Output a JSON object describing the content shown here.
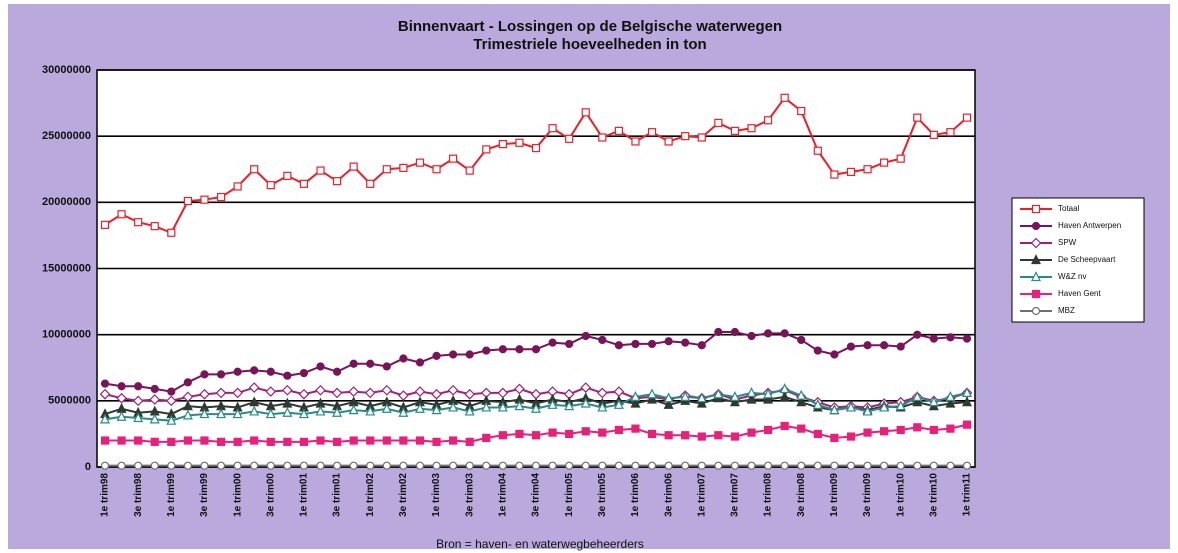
{
  "chart_data": {
    "type": "line",
    "title": "Binnenvaart - Lossingen op de Belgische waterwegen",
    "subtitle": "Trimestriele hoeveelheden in ton",
    "source": "Bron = haven- en waterwegbeheerders",
    "categories": [
      "1e trim98",
      null,
      "3e trim98",
      null,
      "1e trim99",
      null,
      "3e trim99",
      null,
      "1e trim00",
      null,
      "3e trim00",
      null,
      "1e trim01",
      null,
      "3e trim01",
      null,
      "1e trim02",
      null,
      "3e trim02",
      null,
      "1e trim03",
      null,
      "3e trim03",
      null,
      "1e trim04",
      null,
      "3e trim04",
      null,
      "1e trim05",
      null,
      "3e trim05",
      null,
      "1e trim06",
      null,
      "3e trim06",
      null,
      "1e trim07",
      null,
      "3e trim07",
      null,
      "1e trim08",
      null,
      "3e trim08",
      null,
      "1e trim09",
      null,
      "3e trim09",
      null,
      "1e trim10",
      null,
      "3e trim10",
      null,
      "1e trim11"
    ],
    "ylim": [
      0,
      30000000
    ],
    "yticks": [
      0,
      5000000,
      10000000,
      15000000,
      20000000,
      25000000,
      30000000
    ],
    "grid": true,
    "legend": "right",
    "series": [
      {
        "name": "Totaal",
        "color": "#e8202a",
        "marker": "square-open",
        "values": [
          18300000,
          19100000,
          18500000,
          18200000,
          17700000,
          20100000,
          20200000,
          20400000,
          21200000,
          22500000,
          21300000,
          22000000,
          21400000,
          22400000,
          21600000,
          22700000,
          21400000,
          22500000,
          22600000,
          23000000,
          22500000,
          23300000,
          22400000,
          24000000,
          24400000,
          24500000,
          24100000,
          25600000,
          24800000,
          26800000,
          24900000,
          25400000,
          24600000,
          25300000,
          24600000,
          25000000,
          24900000,
          26000000,
          25400000,
          25600000,
          26200000,
          27900000,
          26900000,
          23900000,
          22100000,
          22300000,
          22500000,
          23000000,
          23300000,
          26400000,
          25100000,
          25300000,
          26400000
        ]
      },
      {
        "name": "Haven Antwerpen",
        "color": "#7a1458",
        "marker": "circle-filled",
        "values": [
          6300000,
          6100000,
          6100000,
          5900000,
          5700000,
          6400000,
          7000000,
          7000000,
          7200000,
          7300000,
          7200000,
          6900000,
          7100000,
          7600000,
          7200000,
          7800000,
          7800000,
          7600000,
          8200000,
          7900000,
          8400000,
          8500000,
          8500000,
          8800000,
          8900000,
          8900000,
          8900000,
          9400000,
          9300000,
          9900000,
          9600000,
          9200000,
          9300000,
          9300000,
          9500000,
          9400000,
          9200000,
          10200000,
          10200000,
          9900000,
          10100000,
          10100000,
          9600000,
          8800000,
          8500000,
          9100000,
          9200000,
          9200000,
          9100000,
          10000000,
          9700000,
          9800000,
          9700000
        ]
      },
      {
        "name": "SPW",
        "color": "#a0207a",
        "marker": "diamond-open",
        "values": [
          5500000,
          5200000,
          5000000,
          5100000,
          5000000,
          5300000,
          5500000,
          5600000,
          5600000,
          6000000,
          5700000,
          5800000,
          5500000,
          5800000,
          5600000,
          5700000,
          5600000,
          5800000,
          5400000,
          5700000,
          5500000,
          5800000,
          5500000,
          5600000,
          5600000,
          5900000,
          5500000,
          5700000,
          5500000,
          6000000,
          5600000,
          5700000,
          5200000,
          5300000,
          5100000,
          5400000,
          5200000,
          5500000,
          5100000,
          5400000,
          5600000,
          5800000,
          5300000,
          4900000,
          4500000,
          4600000,
          4500000,
          4800000,
          4900000,
          5300000,
          5000000,
          5200000,
          5600000
        ]
      },
      {
        "name": "De Scheepvaart",
        "color": "#2d3a30",
        "marker": "triangle-filled",
        "values": [
          4000000,
          4400000,
          4100000,
          4200000,
          4000000,
          4600000,
          4500000,
          4600000,
          4500000,
          4900000,
          4600000,
          4800000,
          4500000,
          4800000,
          4600000,
          4900000,
          4600000,
          4900000,
          4500000,
          4900000,
          4700000,
          5000000,
          4600000,
          5000000,
          4900000,
          5100000,
          4800000,
          5100000,
          4900000,
          5200000,
          4800000,
          5000000,
          4800000,
          5100000,
          4700000,
          5000000,
          4800000,
          5200000,
          4900000,
          5100000,
          5100000,
          5300000,
          4900000,
          4500000,
          4300000,
          4500000,
          4300000,
          4600000,
          4500000,
          4900000,
          4600000,
          4800000,
          4900000
        ]
      },
      {
        "name": "W&Z nv",
        "color": "#2a8a8a",
        "marker": "triangle-open",
        "values": [
          3600000,
          3800000,
          3700000,
          3600000,
          3500000,
          3900000,
          4000000,
          4000000,
          4000000,
          4200000,
          4000000,
          4100000,
          4000000,
          4200000,
          4100000,
          4300000,
          4200000,
          4400000,
          4100000,
          4400000,
          4300000,
          4500000,
          4200000,
          4500000,
          4500000,
          4600000,
          4400000,
          4700000,
          4600000,
          4800000,
          4500000,
          4700000,
          5300000,
          5500000,
          5200000,
          5300000,
          5200000,
          5500000,
          5300000,
          5600000,
          5500000,
          5900000,
          5400000,
          4700000,
          4300000,
          4500000,
          4200000,
          4500000,
          4600000,
          5300000,
          4900000,
          5300000,
          5600000
        ]
      },
      {
        "name": "Haven Gent",
        "color": "#e8207a",
        "marker": "square-filled",
        "values": [
          2000000,
          2000000,
          2000000,
          1900000,
          1900000,
          2000000,
          2000000,
          1900000,
          1900000,
          2000000,
          1900000,
          1900000,
          1900000,
          2000000,
          1900000,
          2000000,
          2000000,
          2000000,
          2000000,
          2000000,
          1900000,
          2000000,
          1900000,
          2200000,
          2400000,
          2500000,
          2400000,
          2600000,
          2500000,
          2700000,
          2600000,
          2800000,
          2900000,
          2500000,
          2400000,
          2400000,
          2300000,
          2400000,
          2300000,
          2600000,
          2800000,
          3100000,
          2900000,
          2500000,
          2200000,
          2300000,
          2600000,
          2700000,
          2800000,
          3000000,
          2800000,
          2900000,
          3200000
        ]
      },
      {
        "name": "MBZ",
        "color": "#707070",
        "marker": "circle-open",
        "values": [
          100000,
          100000,
          100000,
          100000,
          100000,
          100000,
          100000,
          100000,
          100000,
          100000,
          100000,
          100000,
          100000,
          100000,
          100000,
          100000,
          100000,
          100000,
          100000,
          100000,
          100000,
          100000,
          100000,
          100000,
          100000,
          100000,
          100000,
          100000,
          100000,
          100000,
          100000,
          100000,
          100000,
          100000,
          100000,
          100000,
          100000,
          100000,
          100000,
          100000,
          100000,
          100000,
          100000,
          100000,
          100000,
          100000,
          100000,
          100000,
          100000,
          100000,
          100000,
          100000,
          100000
        ]
      }
    ]
  }
}
